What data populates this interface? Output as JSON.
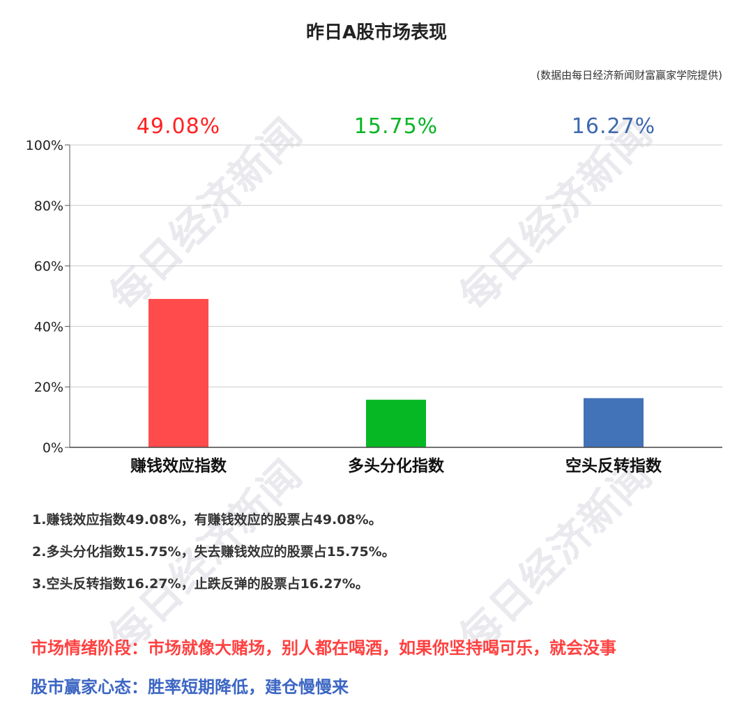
{
  "title": "昨日A股市场表现",
  "source_note": "(数据由每日经济新闻财富赢家学院提供)",
  "watermark_text": "每日经济新闻",
  "chart_data": {
    "type": "bar",
    "categories": [
      "赚钱效应指数",
      "多头分化指数",
      "空头反转指数"
    ],
    "values": [
      49.08,
      15.75,
      16.27
    ],
    "value_labels": [
      "49.08%",
      "15.75%",
      "16.27%"
    ],
    "colors": [
      "#ff4b4b",
      "#07b825",
      "#4272b8"
    ],
    "label_colors": [
      "#ff2222",
      "#06b523",
      "#3d68ad"
    ],
    "ylim": [
      0,
      100
    ],
    "yticks": [
      0,
      20,
      40,
      60,
      80,
      100
    ],
    "ytick_labels": [
      "0%",
      "20%",
      "40%",
      "60%",
      "80%",
      "100%"
    ],
    "grid": true,
    "legend": "none"
  },
  "notes": [
    "1.赚钱效应指数49.08%，有赚钱效应的股票占49.08%。",
    "2.多头分化指数15.75%，失去赚钱效应的股票占15.75%。",
    "3.空头反转指数16.27%，止跌反弹的股票占16.27%。"
  ],
  "market_mood": {
    "text": "市场情绪阶段：市场就像大赌场，别人都在喝酒，如果你坚持喝可乐，就会没事",
    "color": "#ff4040"
  },
  "investor_mindset": {
    "text": "股市赢家心态：胜率短期降低，建仓慢慢来",
    "color": "#3c66c4"
  }
}
